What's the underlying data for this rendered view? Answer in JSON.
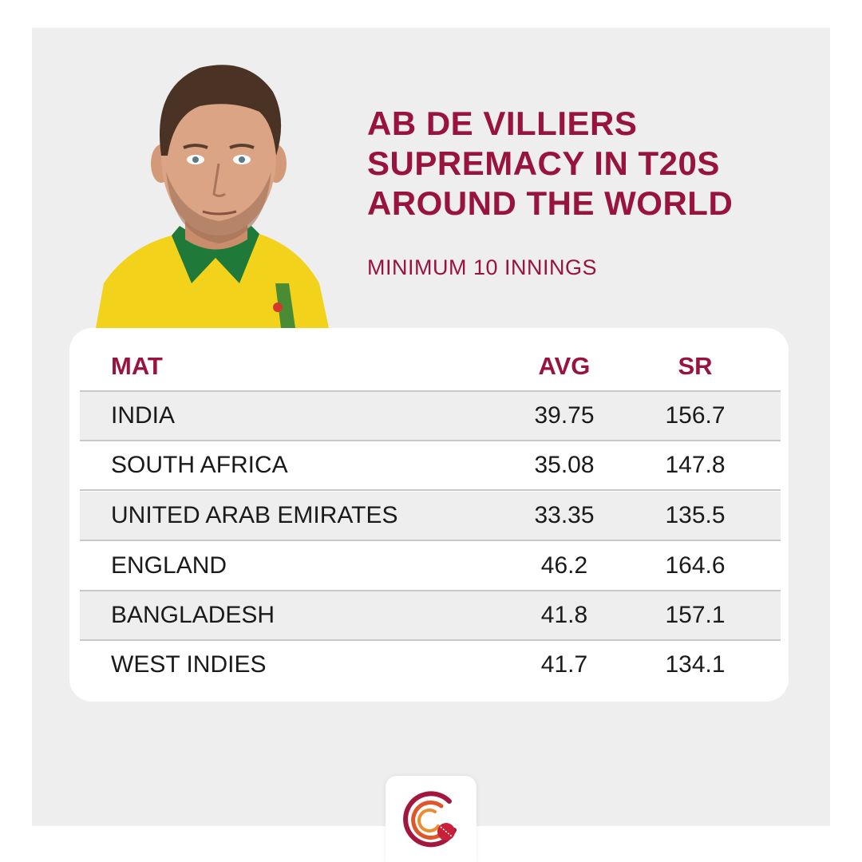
{
  "title_lines": [
    "AB DE VILLIERS",
    "SUPREMACY IN T20S",
    "AROUND THE WORLD"
  ],
  "subtitle": "MINIMUM 10 INNINGS",
  "colors": {
    "accent": "#98143f",
    "panel": "#eeeeee",
    "card": "#ffffff",
    "jersey": "#f2d21b",
    "collar": "#1f7a3a"
  },
  "chart_data": {
    "type": "table",
    "columns": [
      "MAT",
      "AVG",
      "SR"
    ],
    "rows": [
      {
        "name": "INDIA",
        "avg": "39.75",
        "sr": "156.7"
      },
      {
        "name": "SOUTH AFRICA",
        "avg": "35.08",
        "sr": "147.8"
      },
      {
        "name": "UNITED ARAB EMIRATES",
        "avg": "33.35",
        "sr": "135.5"
      },
      {
        "name": "ENGLAND",
        "avg": "46.2",
        "sr": "164.6"
      },
      {
        "name": "BANGLADESH",
        "avg": "41.8",
        "sr": "157.1"
      },
      {
        "name": "WEST INDIES",
        "avg": "41.7",
        "sr": "134.1"
      }
    ]
  },
  "icons": {
    "player": "player-portrait-icon",
    "logo": "cricket-ball-logo-icon"
  }
}
